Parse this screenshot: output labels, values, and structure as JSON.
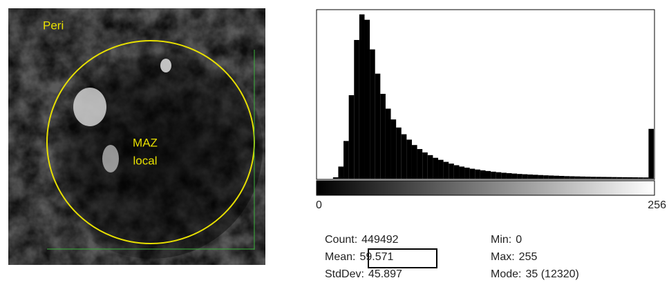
{
  "image": {
    "labels": [
      "Peri",
      "MAZ",
      "local"
    ]
  },
  "chart_data": {
    "type": "histogram",
    "bins": [
      0,
      4,
      8,
      12,
      16,
      20,
      24,
      28,
      32,
      36,
      40,
      44,
      48,
      52,
      56,
      60,
      64,
      68,
      72,
      76,
      80,
      84,
      88,
      92,
      96,
      100,
      104,
      108,
      112,
      116,
      120,
      124,
      128,
      132,
      136,
      140,
      144,
      148,
      152,
      156,
      160,
      164,
      168,
      172,
      176,
      180,
      184,
      188,
      192,
      196,
      200,
      204,
      208,
      212,
      216,
      220,
      224,
      228,
      232,
      236,
      240,
      244,
      248,
      252,
      256
    ],
    "values": [
      0,
      0,
      0,
      100,
      900,
      2800,
      6200,
      10300,
      12200,
      11800,
      9600,
      7800,
      6300,
      5200,
      4400,
      3800,
      3300,
      2900,
      2500,
      2200,
      1950,
      1750,
      1550,
      1400,
      1250,
      1120,
      1000,
      900,
      820,
      740,
      680,
      620,
      570,
      520,
      480,
      440,
      410,
      380,
      350,
      330,
      310,
      290,
      270,
      250,
      235,
      220,
      205,
      190,
      180,
      170,
      160,
      150,
      140,
      135,
      130,
      125,
      120,
      115,
      110,
      105,
      100,
      95,
      90,
      3700
    ],
    "color": "#000000",
    "xlim": [
      0,
      256
    ],
    "xticks": [
      0,
      256
    ],
    "ylim": [
      0,
      12500
    ]
  },
  "stats": [
    {
      "label": "Count:",
      "value": 449492
    },
    {
      "label": "Mean:",
      "value": 59.571
    },
    {
      "label": "StdDev:",
      "value": 45.897
    },
    {
      "label": "Min:",
      "value": 0
    },
    {
      "label": "Max:",
      "value": 255
    },
    {
      "label": "Mode:",
      "value": "35 (12320)"
    }
  ]
}
